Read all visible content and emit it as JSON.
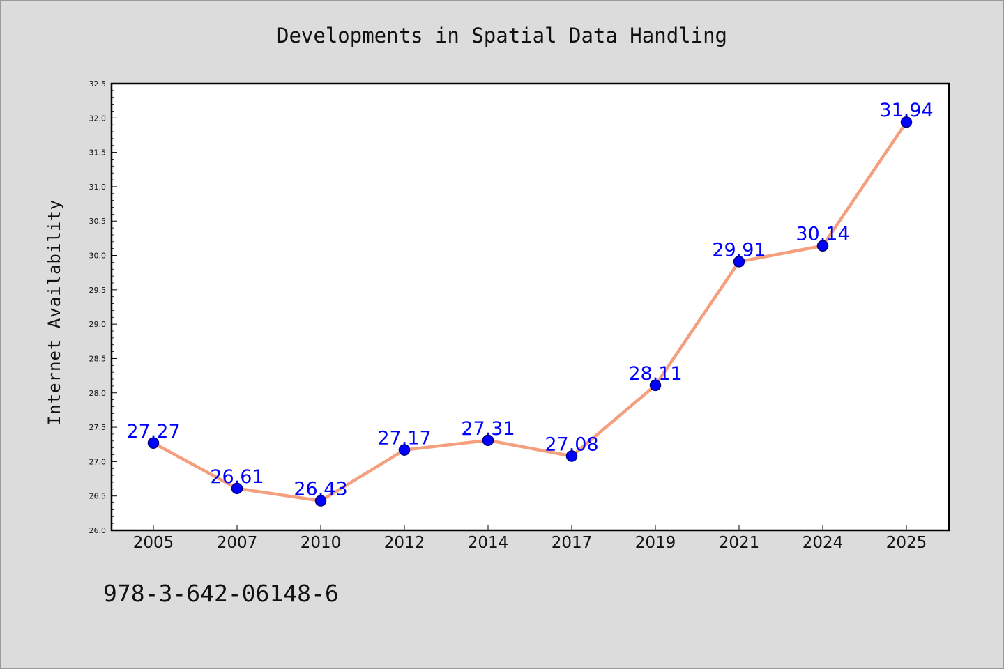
{
  "chart_data": {
    "type": "line",
    "title": "Developments in Spatial Data Handling",
    "xlabel": "",
    "ylabel": "Internet Availability",
    "categories": [
      "2005",
      "2007",
      "2010",
      "2012",
      "2014",
      "2017",
      "2019",
      "2021",
      "2024",
      "2025"
    ],
    "series": [
      {
        "values": [
          27.27,
          26.61,
          26.43,
          27.17,
          27.31,
          27.08,
          28.11,
          29.91,
          30.14,
          31.94
        ]
      }
    ],
    "data_labels": [
      "27.27",
      "26.61",
      "26.43",
      "27.17",
      "27.31",
      "27.08",
      "28.11",
      "29.91",
      "30.14",
      "31.94"
    ],
    "ylim": [
      26.0,
      32.5
    ],
    "y_ticks": [
      "26.0",
      "26.5",
      "27.0",
      "27.5",
      "28.0",
      "28.5",
      "29.0",
      "29.5",
      "30.0",
      "30.5",
      "31.0",
      "31.5",
      "32.0",
      "32.5"
    ],
    "grid": false,
    "colors": {
      "line": "#f4a07e",
      "marker": "#0000ff",
      "marker_edge": "#000080",
      "label": "#0000ff",
      "background": "#dcdcdc",
      "plot_area": "#ffffff"
    }
  },
  "footer": {
    "isbn": "978-3-642-06148-6"
  }
}
